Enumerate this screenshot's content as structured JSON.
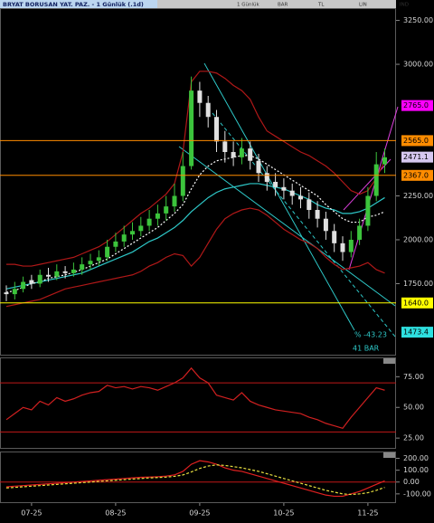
{
  "toolbar": [
    "1 Günlük",
    "BAR",
    "TL",
    "LIN",
    "IND"
  ],
  "chart_data": [
    {
      "type": "candlestick",
      "title": "BRYAT BORUSAN YAT. PAZ. - 1 Günlük (.1d)",
      "categories": [
        null,
        null,
        null,
        "07-25",
        null,
        null,
        null,
        null,
        null,
        null,
        null,
        null,
        null,
        "08-25",
        null,
        null,
        null,
        null,
        null,
        null,
        null,
        null,
        null,
        "09-25",
        null,
        null,
        null,
        null,
        null,
        null,
        null,
        null,
        null,
        "10-25",
        null,
        null,
        null,
        null,
        null,
        null,
        null,
        null,
        null,
        "11-25",
        null,
        null
      ],
      "open": [
        1700,
        1690,
        1720,
        1770,
        1750,
        1800,
        1790,
        1820,
        1810,
        1830,
        1860,
        1880,
        1900,
        1960,
        1990,
        2030,
        2050,
        2080,
        2120,
        2150,
        2190,
        2250,
        2420,
        2850,
        2780,
        2700,
        2560,
        2500,
        2470,
        2520,
        2450,
        2380,
        2330,
        2300,
        2280,
        2250,
        2230,
        2170,
        2120,
        2050,
        1980,
        1930,
        2000,
        2080,
        2250,
        2430
      ],
      "high": [
        1740,
        1760,
        1790,
        1800,
        1830,
        1840,
        1860,
        1850,
        1870,
        1900,
        1920,
        1940,
        2000,
        2040,
        2080,
        2100,
        2130,
        2170,
        2200,
        2250,
        2320,
        2500,
        2930,
        2900,
        2820,
        2740,
        2620,
        2560,
        2580,
        2560,
        2490,
        2420,
        2380,
        2350,
        2320,
        2300,
        2270,
        2220,
        2160,
        2090,
        2020,
        2050,
        2120,
        2300,
        2500,
        2520
      ],
      "low": [
        1650,
        1660,
        1700,
        1720,
        1730,
        1760,
        1770,
        1780,
        1790,
        1800,
        1830,
        1850,
        1880,
        1930,
        1960,
        2000,
        2020,
        2050,
        2080,
        2110,
        2160,
        2220,
        2400,
        2700,
        2640,
        2500,
        2440,
        2420,
        2430,
        2400,
        2330,
        2280,
        2250,
        2230,
        2200,
        2180,
        2120,
        2070,
        2000,
        1930,
        1880,
        1900,
        1970,
        2050,
        2220,
        2380
      ],
      "close": [
        1690,
        1720,
        1760,
        1750,
        1800,
        1790,
        1820,
        1810,
        1830,
        1860,
        1880,
        1900,
        1960,
        1990,
        2030,
        2050,
        2080,
        2120,
        2150,
        2190,
        2250,
        2420,
        2850,
        2780,
        2700,
        2560,
        2500,
        2470,
        2520,
        2450,
        2380,
        2330,
        2300,
        2280,
        2250,
        2230,
        2170,
        2120,
        2050,
        1980,
        1930,
        2000,
        2080,
        2250,
        2430,
        2470
      ],
      "up_color": "#3cc43c",
      "down_color": "#e0e0e0",
      "overlays": [
        {
          "color": "#b01818",
          "values": [
            1860,
            1860,
            1850,
            1850,
            1860,
            1870,
            1880,
            1890,
            1900,
            1920,
            1940,
            1960,
            1990,
            2030,
            2070,
            2110,
            2150,
            2180,
            2220,
            2260,
            2320,
            2500,
            2900,
            2960,
            2960,
            2950,
            2920,
            2880,
            2850,
            2800,
            2700,
            2620,
            2590,
            2560,
            2530,
            2500,
            2480,
            2450,
            2420,
            2380,
            2330,
            2280,
            2260,
            2280,
            2350,
            2450
          ]
        },
        {
          "color": "#b01818",
          "values": [
            1620,
            1630,
            1640,
            1650,
            1660,
            1680,
            1700,
            1720,
            1730,
            1740,
            1750,
            1760,
            1770,
            1780,
            1790,
            1800,
            1820,
            1850,
            1870,
            1900,
            1920,
            1910,
            1850,
            1900,
            1980,
            2060,
            2120,
            2150,
            2170,
            2180,
            2170,
            2140,
            2100,
            2060,
            2030,
            2000,
            1980,
            1950,
            1900,
            1860,
            1830,
            1840,
            1850,
            1870,
            1830,
            1810
          ]
        },
        {
          "color": "#2ec8c8",
          "values": [
            1720,
            1730,
            1740,
            1750,
            1760,
            1770,
            1780,
            1790,
            1800,
            1810,
            1830,
            1850,
            1870,
            1890,
            1910,
            1930,
            1960,
            1990,
            2010,
            2040,
            2070,
            2110,
            2160,
            2200,
            2240,
            2270,
            2290,
            2300,
            2310,
            2320,
            2320,
            2310,
            2300,
            2290,
            2270,
            2250,
            2230,
            2200,
            2180,
            2170,
            2150,
            2150,
            2160,
            2180,
            2210,
            2240
          ]
        },
        {
          "color": "#ffffff",
          "dash": true,
          "values": [
            1700,
            1710,
            1730,
            1750,
            1760,
            1780,
            1790,
            1800,
            1815,
            1830,
            1850,
            1870,
            1890,
            1920,
            1950,
            1980,
            2010,
            2040,
            2070,
            2110,
            2150,
            2200,
            2290,
            2370,
            2420,
            2450,
            2460,
            2470,
            2480,
            2480,
            2460,
            2430,
            2400,
            2370,
            2340,
            2310,
            2280,
            2250,
            2200,
            2160,
            2120,
            2100,
            2100,
            2130,
            2140,
            2160
          ]
        }
      ],
      "ylim": [
        1345,
        3320
      ],
      "yticks": [
        {
          "value": 3250,
          "label": "3250.00"
        },
        {
          "value": 3000,
          "label": "3000.00"
        },
        {
          "value": 2250,
          "label": "2250.00"
        },
        {
          "value": 2000,
          "label": "2000.00"
        },
        {
          "value": 1750,
          "label": "1750.00"
        }
      ],
      "levels": [
        {
          "value": 2765,
          "label": "2765.0",
          "color": "#ff00ff",
          "line": false
        },
        {
          "value": 2565,
          "label": "2565.0",
          "color": "#ff8c00",
          "line": true
        },
        {
          "value": 2471.1,
          "label": "2471.1",
          "color": "#d6c8f0",
          "line": false
        },
        {
          "value": 2367,
          "label": "2367.0",
          "color": "#ff8c00",
          "line": true
        },
        {
          "value": 1640,
          "label": "1640.0",
          "color": "#ffff00",
          "line": true
        },
        {
          "value": 1473.4,
          "label": "1473.4",
          "color": "#2ee0e0",
          "line": false
        }
      ],
      "annotations": [
        "% -43.23",
        "41 BAR"
      ]
    },
    {
      "type": "line",
      "series": [
        {
          "color": "#d02020",
          "values": [
            40,
            45,
            50,
            48,
            55,
            52,
            58,
            55,
            57,
            60,
            62,
            63,
            68,
            66,
            67,
            65,
            67,
            66,
            64,
            67,
            70,
            74,
            82,
            74,
            70,
            60,
            58,
            56,
            62,
            55,
            52,
            50,
            48,
            47,
            46,
            45,
            42,
            40,
            37,
            35,
            33,
            42,
            50,
            58,
            66,
            64
          ]
        }
      ],
      "ylim": [
        17,
        90
      ],
      "yticks": [
        {
          "value": 75,
          "label": "75.00"
        },
        {
          "value": 50,
          "label": "50.00"
        },
        {
          "value": 25,
          "label": "25.00"
        }
      ],
      "reference_lines": [
        70,
        30
      ],
      "reference_color": "#c01818"
    },
    {
      "type": "line",
      "series": [
        {
          "color": "#e02020",
          "values": [
            -40,
            -35,
            -30,
            -25,
            -20,
            -15,
            -10,
            -5,
            0,
            5,
            10,
            15,
            20,
            25,
            30,
            35,
            40,
            42,
            45,
            50,
            60,
            90,
            150,
            180,
            170,
            150,
            120,
            100,
            90,
            70,
            50,
            30,
            10,
            -10,
            -30,
            -50,
            -70,
            -90,
            -110,
            -120,
            -120,
            -100,
            -80,
            -50,
            -20,
            10
          ]
        },
        {
          "color": "#e8e040",
          "dash": true,
          "values": [
            -50,
            -45,
            -40,
            -35,
            -30,
            -25,
            -20,
            -15,
            -10,
            -5,
            0,
            5,
            10,
            15,
            20,
            25,
            30,
            35,
            38,
            42,
            48,
            60,
            85,
            115,
            135,
            145,
            140,
            130,
            120,
            105,
            90,
            70,
            50,
            30,
            10,
            -10,
            -30,
            -50,
            -70,
            -85,
            -100,
            -105,
            -100,
            -90,
            -70,
            -45
          ]
        }
      ],
      "ylim": [
        -170,
        250
      ],
      "yticks": [
        {
          "value": 200,
          "label": "200.00"
        },
        {
          "value": 100,
          "label": "100.00"
        },
        {
          "value": 0,
          "label": "0.00"
        },
        {
          "value": -100,
          "label": "-100.00"
        }
      ],
      "reference_lines": [
        0
      ],
      "reference_color": "#c01818"
    }
  ]
}
